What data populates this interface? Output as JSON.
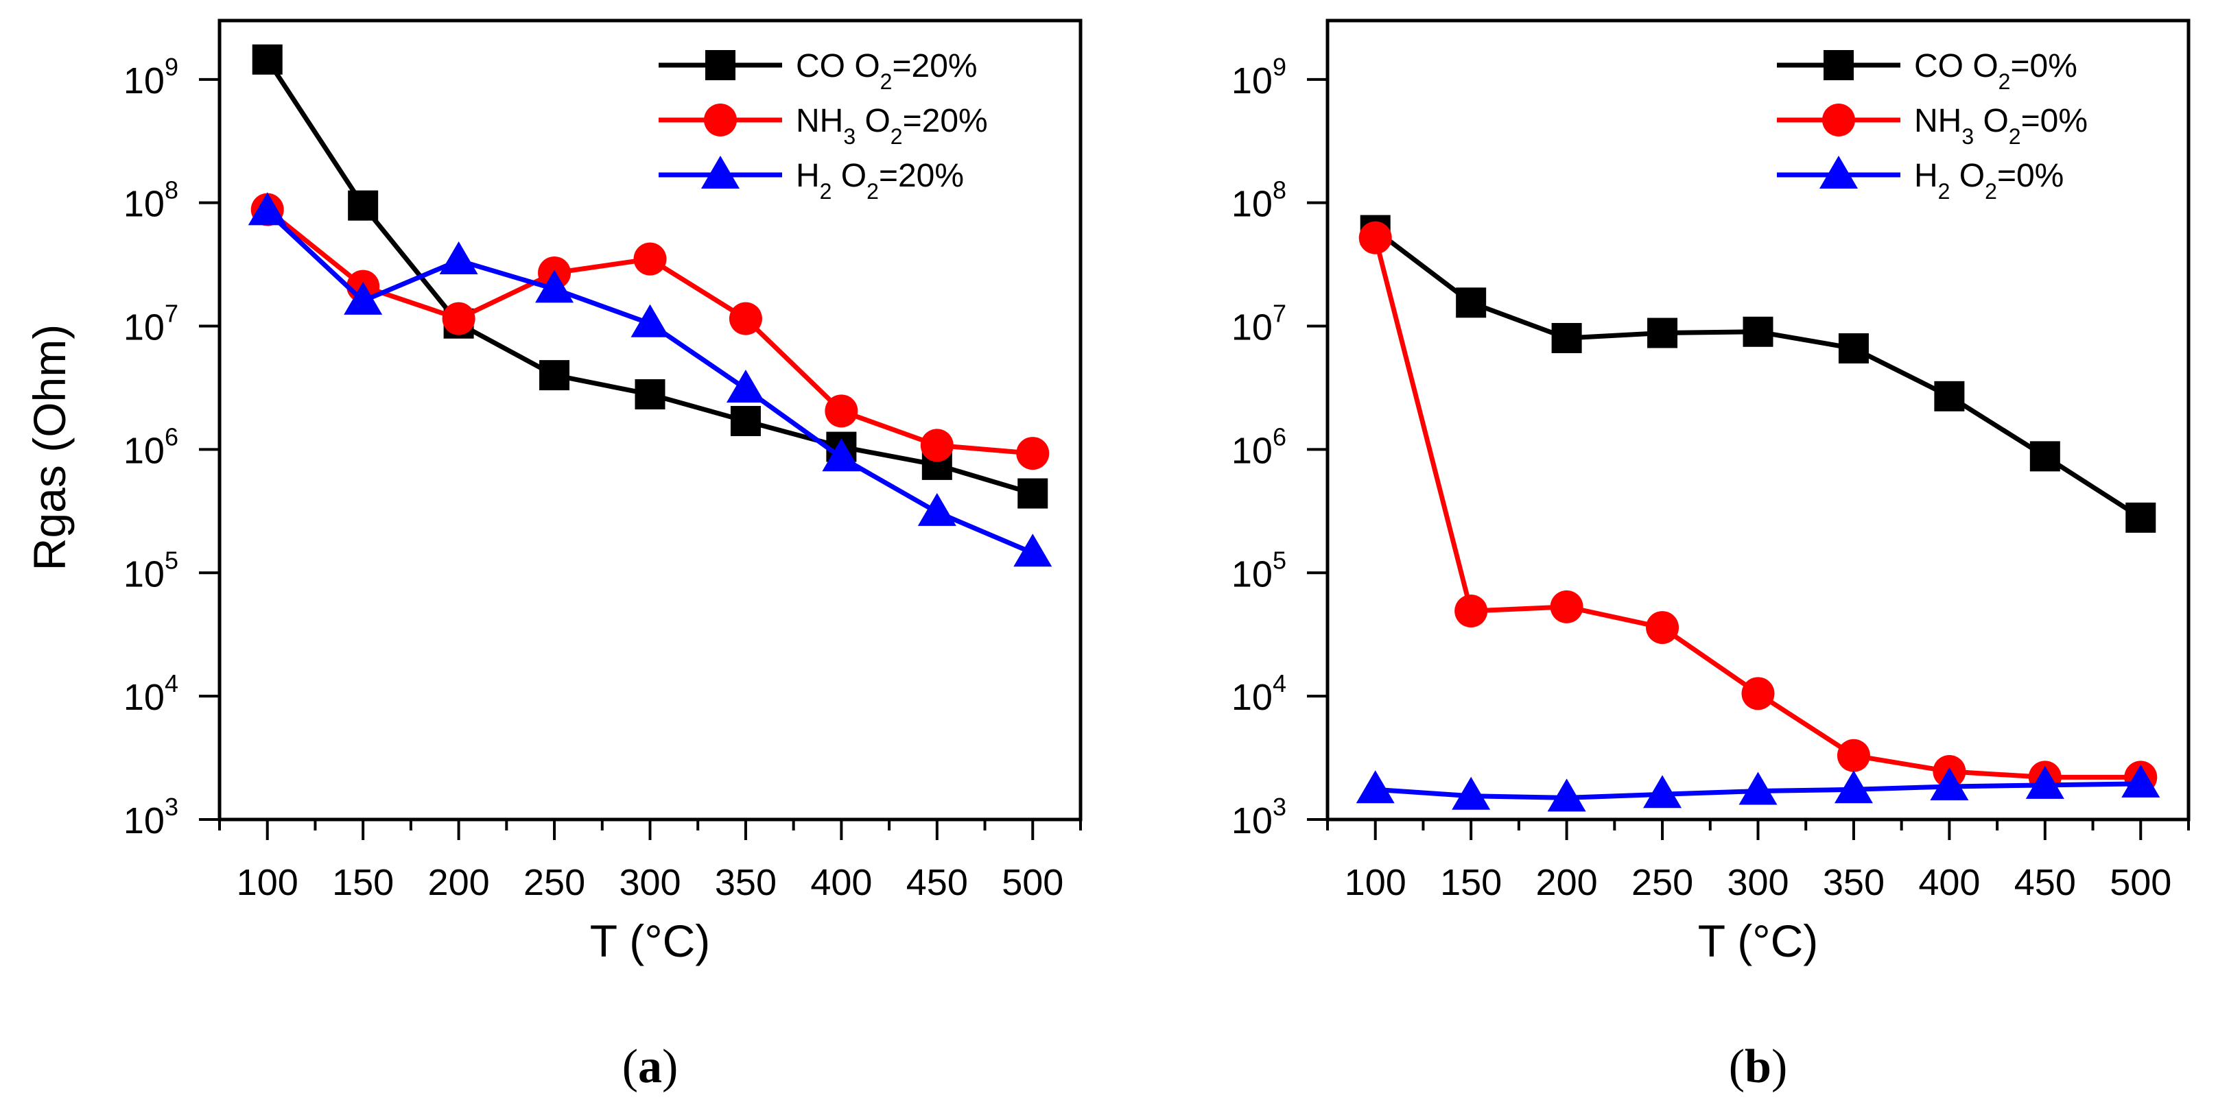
{
  "chart_data": [
    {
      "type": "line",
      "panel_label": "a",
      "xlabel": "T (°C)",
      "ylabel": "Rgas (Ohm)",
      "yscale": "log",
      "ylim": [
        1000,
        3000000000
      ],
      "xlim": [
        75,
        525
      ],
      "x": [
        100,
        150,
        200,
        250,
        300,
        350,
        400,
        450,
        500
      ],
      "x_ticks": [
        "100",
        "150",
        "200",
        "250",
        "300",
        "350",
        "400",
        "450",
        "500"
      ],
      "y_ticks": [
        {
          "base": "10",
          "exp": "3",
          "value": 1000
        },
        {
          "base": "10",
          "exp": "4",
          "value": 10000
        },
        {
          "base": "10",
          "exp": "5",
          "value": 100000
        },
        {
          "base": "10",
          "exp": "6",
          "value": 1000000
        },
        {
          "base": "10",
          "exp": "7",
          "value": 10000000
        },
        {
          "base": "10",
          "exp": "8",
          "value": 100000000
        },
        {
          "base": "10",
          "exp": "9",
          "value": 1000000000
        }
      ],
      "legend_position": "top-right",
      "series": [
        {
          "name": "CO O2=20%",
          "legend": [
            {
              "t": "CO O",
              "sub": false
            },
            {
              "t": "2",
              "sub": true
            },
            {
              "t": "=20%",
              "sub": false
            }
          ],
          "color": "#000000",
          "marker": "square",
          "values": [
            1450000000,
            95000000,
            10500000,
            4000000,
            2800000,
            1700000,
            1050000,
            750000,
            440000
          ]
        },
        {
          "name": "NH3 O2=20%",
          "legend": [
            {
              "t": "NH",
              "sub": false
            },
            {
              "t": "3",
              "sub": true
            },
            {
              "t": " O",
              "sub": false
            },
            {
              "t": "2",
              "sub": true
            },
            {
              "t": "=20%",
              "sub": false
            }
          ],
          "color": "#ff0000",
          "marker": "circle",
          "values": [
            88000000,
            21000000,
            11500000,
            27000000,
            35000000,
            11500000,
            2050000,
            1080000,
            930000
          ]
        },
        {
          "name": "H2 O2=20%",
          "legend": [
            {
              "t": "H",
              "sub": false
            },
            {
              "t": "2",
              "sub": true
            },
            {
              "t": " O",
              "sub": false
            },
            {
              "t": "2",
              "sub": true
            },
            {
              "t": "=20%",
              "sub": false
            }
          ],
          "color": "#0000ff",
          "marker": "triangle",
          "values": [
            85000000,
            16000000,
            34000000,
            20000000,
            10500000,
            3100000,
            860000,
            310000,
            145000
          ]
        }
      ]
    },
    {
      "type": "line",
      "panel_label": "b",
      "xlabel": "T (°C)",
      "ylabel": "",
      "yscale": "log",
      "ylim": [
        1000,
        3000000000
      ],
      "xlim": [
        75,
        525
      ],
      "x": [
        100,
        150,
        200,
        250,
        300,
        350,
        400,
        450,
        500
      ],
      "x_ticks": [
        "100",
        "150",
        "200",
        "250",
        "300",
        "350",
        "400",
        "450",
        "500"
      ],
      "y_ticks": [
        {
          "base": "10",
          "exp": "3",
          "value": 1000
        },
        {
          "base": "10",
          "exp": "4",
          "value": 10000
        },
        {
          "base": "10",
          "exp": "5",
          "value": 100000
        },
        {
          "base": "10",
          "exp": "6",
          "value": 1000000
        },
        {
          "base": "10",
          "exp": "7",
          "value": 10000000
        },
        {
          "base": "10",
          "exp": "8",
          "value": 100000000
        },
        {
          "base": "10",
          "exp": "9",
          "value": 1000000000
        }
      ],
      "legend_position": "top-right",
      "series": [
        {
          "name": "CO O2=0%",
          "legend": [
            {
              "t": "CO O",
              "sub": false
            },
            {
              "t": "2",
              "sub": true
            },
            {
              "t": "=0%",
              "sub": false
            }
          ],
          "color": "#000000",
          "marker": "square",
          "values": [
            60000000,
            15500000,
            8000000,
            8800000,
            9000000,
            6600000,
            2700000,
            880000,
            280000
          ]
        },
        {
          "name": "NH3 O2=0%",
          "legend": [
            {
              "t": "NH",
              "sub": false
            },
            {
              "t": "3",
              "sub": true
            },
            {
              "t": " O",
              "sub": false
            },
            {
              "t": "2",
              "sub": true
            },
            {
              "t": "=0%",
              "sub": false
            }
          ],
          "color": "#ff0000",
          "marker": "circle",
          "values": [
            52000000,
            49000,
            53000,
            36000,
            10500,
            3300,
            2450,
            2200,
            2200
          ]
        },
        {
          "name": "H2 O2=0%",
          "legend": [
            {
              "t": "H",
              "sub": false
            },
            {
              "t": "2",
              "sub": true
            },
            {
              "t": " O",
              "sub": false
            },
            {
              "t": "2",
              "sub": true
            },
            {
              "t": "=0%",
              "sub": false
            }
          ],
          "color": "#0000ff",
          "marker": "triangle",
          "values": [
            1750,
            1550,
            1500,
            1600,
            1700,
            1750,
            1850,
            1900,
            1950
          ]
        }
      ]
    }
  ]
}
